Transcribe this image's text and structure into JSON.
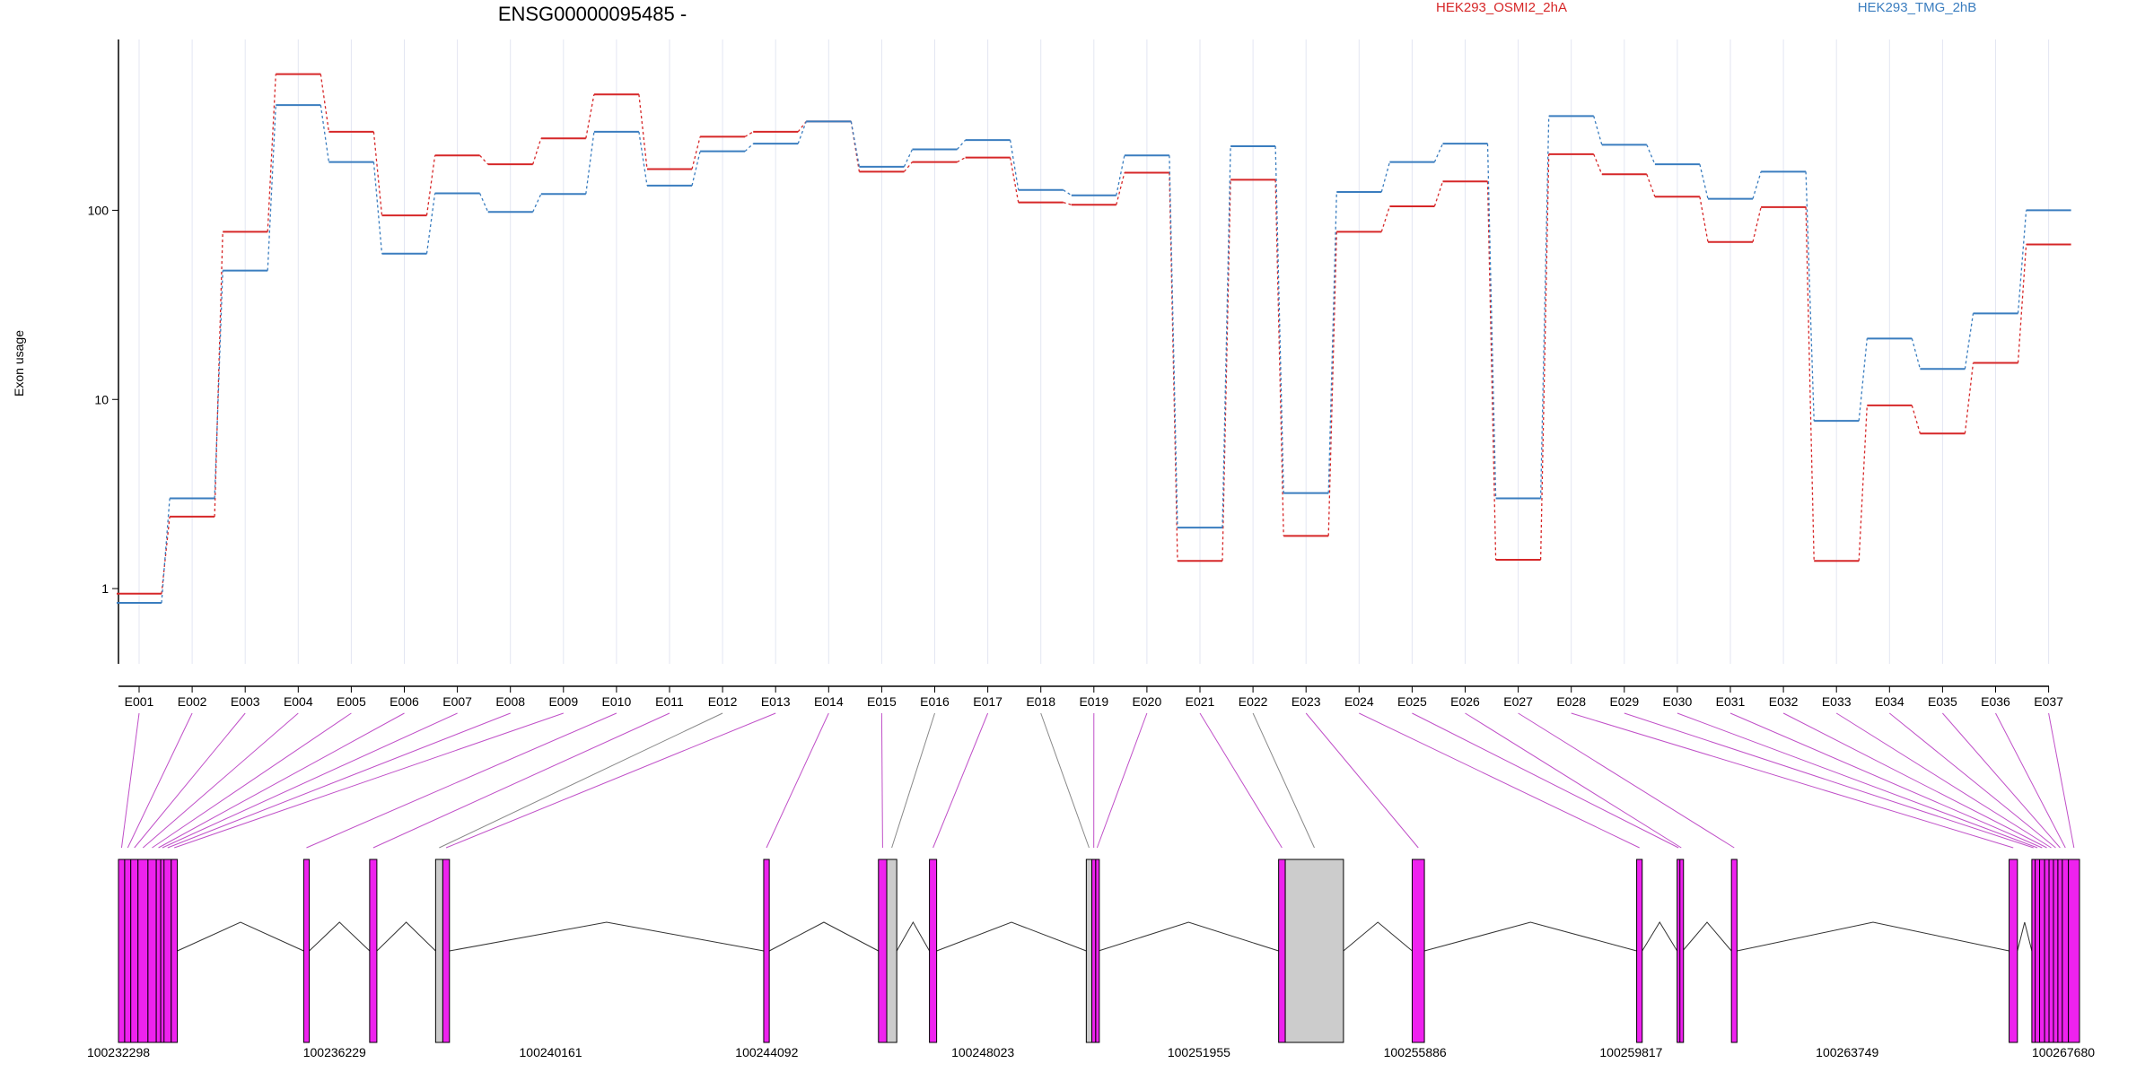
{
  "chart_data": {
    "type": "line",
    "title": "ENSG00000095485 -",
    "ylabel": "Exon usage",
    "yscale": "log",
    "ylim": [
      0.4,
      800
    ],
    "yticks": [
      "1",
      "10",
      "100"
    ],
    "ytick_values": [
      1,
      10,
      100
    ],
    "categories": [
      "E001",
      "E002",
      "E003",
      "E004",
      "E005",
      "E006",
      "E007",
      "E008",
      "E009",
      "E010",
      "E011",
      "E012",
      "E013",
      "E014",
      "E015",
      "E016",
      "E017",
      "E018",
      "E019",
      "E020",
      "E021",
      "E022",
      "E023",
      "E024",
      "E025",
      "E026",
      "E027",
      "E028",
      "E029",
      "E030",
      "E031",
      "E032",
      "E033",
      "E034",
      "E035",
      "E036",
      "E037"
    ],
    "series": [
      {
        "name": "HEK293_OSMI2_2hA",
        "color": "#d62728",
        "values": [
          0.94,
          2.4,
          77,
          525,
          260,
          94,
          195,
          175,
          240,
          410,
          165,
          245,
          260,
          295,
          160,
          180,
          190,
          110,
          107,
          158,
          1.4,
          145,
          1.9,
          77,
          105,
          142,
          1.42,
          198,
          155,
          118,
          68,
          104,
          1.4,
          9.3,
          6.6,
          15.6,
          66
        ]
      },
      {
        "name": "HEK293_TMG_2hB",
        "color": "#3a7dbf",
        "values": [
          0.84,
          3.0,
          48,
          360,
          180,
          59,
          123,
          98,
          122,
          260,
          135,
          205,
          225,
          295,
          170,
          210,
          235,
          128,
          120,
          195,
          2.1,
          218,
          3.2,
          125,
          180,
          225,
          3.0,
          315,
          222,
          175,
          115,
          160,
          7.7,
          21,
          14.5,
          28.5,
          100
        ]
      }
    ],
    "legend_placement": "top",
    "grid": "vertical"
  },
  "gene_model": {
    "coordinates": [
      "100232298",
      "100236229",
      "100240161",
      "100244092",
      "100248023",
      "100251955",
      "100255886",
      "100259817",
      "100263749",
      "100267680"
    ],
    "start": 100232298,
    "end": 100267680,
    "highlight_color": "#ee22ee",
    "nonsig_color": "#cccccc",
    "exons": [
      {
        "id": "E001",
        "start": 100232298,
        "end": 100232410,
        "sig": true
      },
      {
        "id": "E002",
        "start": 100232410,
        "end": 100232520,
        "sig": true
      },
      {
        "id": "E003",
        "start": 100232520,
        "end": 100232650,
        "sig": true
      },
      {
        "id": "E004",
        "start": 100232650,
        "end": 100232830,
        "sig": true
      },
      {
        "id": "E005",
        "start": 100232830,
        "end": 100232980,
        "sig": true
      },
      {
        "id": "E006",
        "start": 100232980,
        "end": 100233060,
        "sig": true
      },
      {
        "id": "E007",
        "start": 100233060,
        "end": 100233120,
        "sig": true
      },
      {
        "id": "E008",
        "start": 100233120,
        "end": 100233250,
        "sig": true
      },
      {
        "id": "E009",
        "start": 100233250,
        "end": 100233360,
        "sig": true
      },
      {
        "id": "E010",
        "start": 100235640,
        "end": 100235740,
        "sig": true
      },
      {
        "id": "E011",
        "start": 100236830,
        "end": 100236960,
        "sig": true
      },
      {
        "id": "E012",
        "start": 100238020,
        "end": 100238150,
        "sig": false
      },
      {
        "id": "E013",
        "start": 100238150,
        "end": 100238270,
        "sig": true
      },
      {
        "id": "E014",
        "start": 100243940,
        "end": 100244040,
        "sig": true
      },
      {
        "id": "E015",
        "start": 100246010,
        "end": 100246160,
        "sig": true
      },
      {
        "id": "E016",
        "start": 100246160,
        "end": 100246340,
        "sig": false
      },
      {
        "id": "E017",
        "start": 100246930,
        "end": 100247060,
        "sig": true
      },
      {
        "id": "E018",
        "start": 100249760,
        "end": 100249860,
        "sig": false
      },
      {
        "id": "E019",
        "start": 100249860,
        "end": 100249930,
        "sig": true
      },
      {
        "id": "E020",
        "start": 100249930,
        "end": 100249980,
        "sig": true
      },
      {
        "id": "E021",
        "start": 100253230,
        "end": 100253350,
        "sig": true
      },
      {
        "id": "E022",
        "start": 100253350,
        "end": 100254400,
        "sig": false
      },
      {
        "id": "E023",
        "start": 100255640,
        "end": 100255860,
        "sig": true
      },
      {
        "id": "E024",
        "start": 100259690,
        "end": 100259790,
        "sig": true
      },
      {
        "id": "E025",
        "start": 100260420,
        "end": 100260470,
        "sig": true
      },
      {
        "id": "E026",
        "start": 100260470,
        "end": 100260520,
        "sig": true
      },
      {
        "id": "E027",
        "start": 100261400,
        "end": 100261500,
        "sig": true
      },
      {
        "id": "E028",
        "start": 100266410,
        "end": 100266560,
        "sig": true
      },
      {
        "id": "E029",
        "start": 100266820,
        "end": 100266880,
        "sig": true
      },
      {
        "id": "E030",
        "start": 100266880,
        "end": 100266960,
        "sig": true
      },
      {
        "id": "E031",
        "start": 100266960,
        "end": 100267050,
        "sig": true
      },
      {
        "id": "E032",
        "start": 100267050,
        "end": 100267130,
        "sig": true
      },
      {
        "id": "E033",
        "start": 100267130,
        "end": 100267210,
        "sig": true
      },
      {
        "id": "E034",
        "start": 100267210,
        "end": 100267290,
        "sig": true
      },
      {
        "id": "E035",
        "start": 100267290,
        "end": 100267370,
        "sig": true
      },
      {
        "id": "E036",
        "start": 100267370,
        "end": 100267480,
        "sig": true
      },
      {
        "id": "E037",
        "start": 100267480,
        "end": 100267680,
        "sig": true
      }
    ]
  }
}
